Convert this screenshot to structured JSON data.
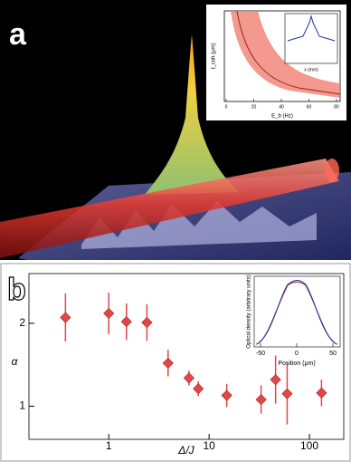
{
  "panel_a": {
    "label": "a",
    "inset": {
      "x_label": "E_b (Hz)",
      "y_label": "ℓ_coh (μm)",
      "xticks": [
        0,
        20,
        40,
        60,
        80
      ],
      "inner_x_label": "x (mm)"
    }
  },
  "panel_b_label": "b",
  "chart_data": {
    "type": "scatter",
    "x_label": "Δ/J",
    "y_label": "α",
    "log_x": true,
    "x": [
      0.37,
      1.0,
      1.5,
      2.4,
      3.9,
      6.3,
      7.8,
      15,
      33,
      46,
      60,
      132
    ],
    "series": [
      {
        "color": "#e04848",
        "values": [
          2.07,
          2.12,
          2.02,
          2.01,
          1.52,
          1.34,
          1.21,
          1.13,
          1.08,
          1.32,
          1.15,
          1.16
        ],
        "errors": [
          0.29,
          0.25,
          0.22,
          0.22,
          0.16,
          0.09,
          0.09,
          0.14,
          0.17,
          0.29,
          0.37,
          0.16
        ]
      }
    ],
    "xlim": [
      0.16,
      220
    ],
    "ylim": [
      0.6,
      2.6
    ],
    "xticks": [
      1,
      10,
      100
    ],
    "yticks": [
      1,
      2
    ],
    "inset": {
      "x_label": "Position (μm)",
      "y_label": "Optical density (arbitrary units)",
      "xticks": [
        -50,
        0,
        50
      ]
    }
  }
}
